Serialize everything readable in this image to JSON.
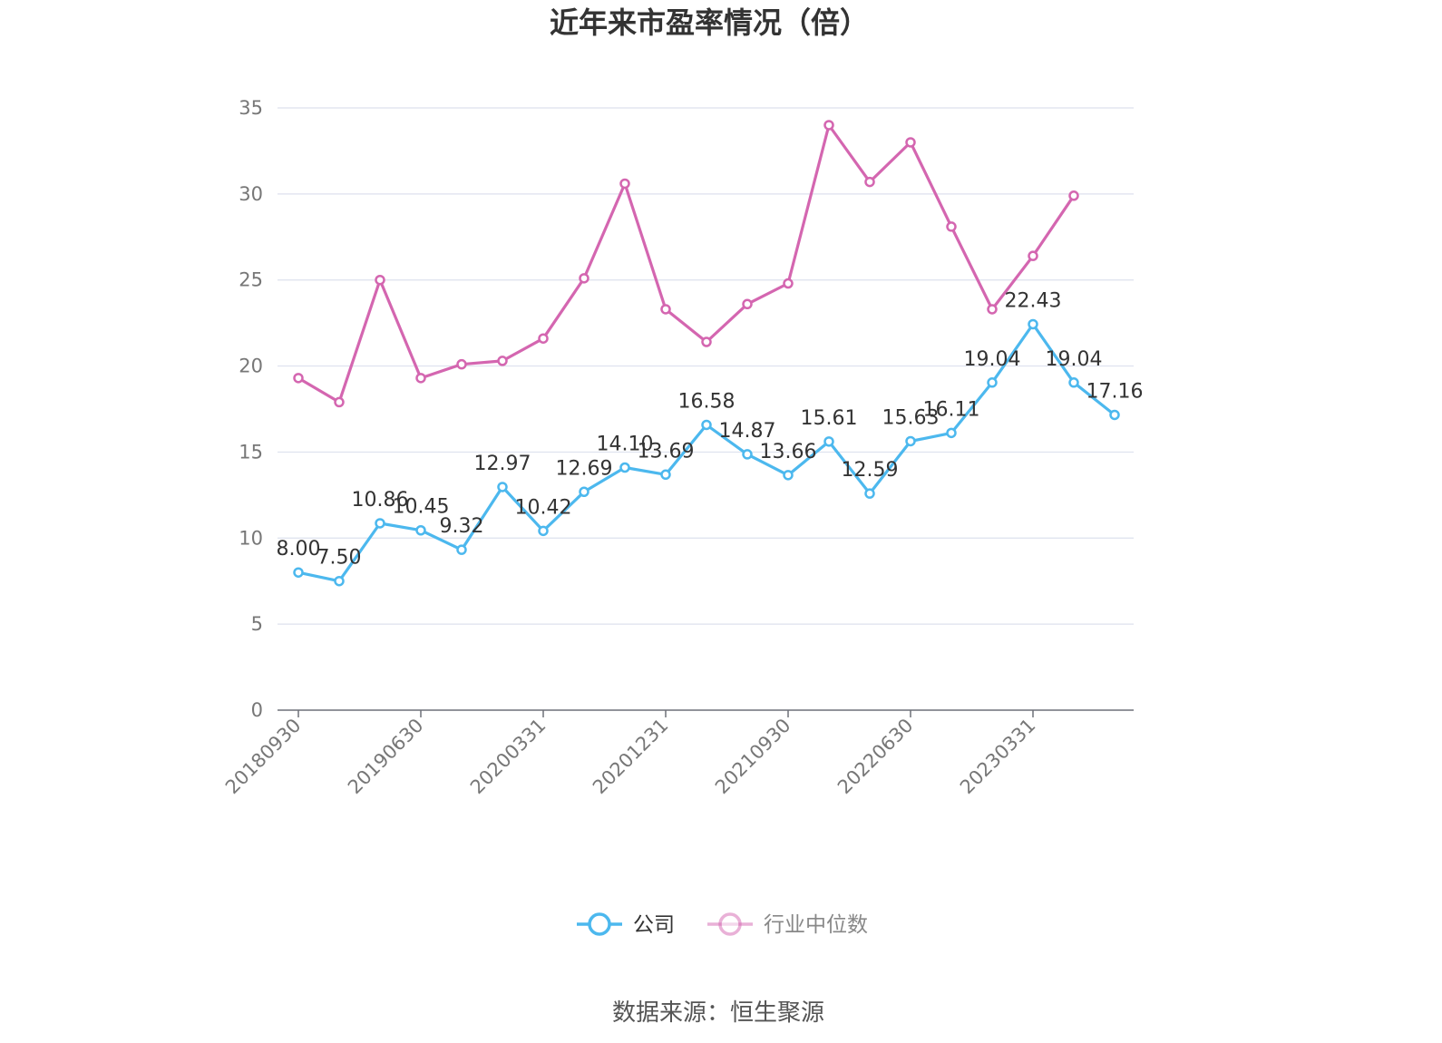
{
  "title": "近年来市盈率情况（倍）",
  "source": "数据来源：恒生聚源",
  "chart_data": {
    "type": "line",
    "title": "近年来市盈率情况（倍）",
    "x": [
      "20180930",
      "20181231",
      "20190331",
      "20190630",
      "20190930",
      "20191231",
      "20200331",
      "20200630",
      "20200930",
      "20201231",
      "20210331",
      "20210630",
      "20210930",
      "20211231",
      "20220331",
      "20220630",
      "20220930",
      "20221231",
      "20230331",
      "20230630",
      "20230930"
    ],
    "x_tick_labels": [
      "20180930",
      "20190630",
      "20200331",
      "20201231",
      "20210930",
      "20220630",
      "20230331"
    ],
    "ylim": [
      0,
      35
    ],
    "y_ticks": [
      0,
      5,
      10,
      15,
      20,
      25,
      30,
      35
    ],
    "grid": true,
    "legend_position": "bottom",
    "series": [
      {
        "name": "公司",
        "color": "#4cb8ee",
        "show_labels": true,
        "values": [
          8.0,
          7.5,
          10.86,
          10.45,
          9.32,
          12.97,
          10.42,
          12.69,
          14.1,
          13.69,
          16.58,
          14.87,
          13.66,
          15.61,
          12.59,
          15.63,
          16.11,
          19.04,
          22.43,
          19.04,
          17.16
        ]
      },
      {
        "name": "行业中位数",
        "color": "#d466b0",
        "show_labels": false,
        "values": [
          19.3,
          17.9,
          25.0,
          19.3,
          20.1,
          20.3,
          21.6,
          25.1,
          30.6,
          23.3,
          21.4,
          23.6,
          24.8,
          34.0,
          30.7,
          33.0,
          28.1,
          23.3,
          26.4,
          29.9,
          null
        ]
      }
    ]
  }
}
